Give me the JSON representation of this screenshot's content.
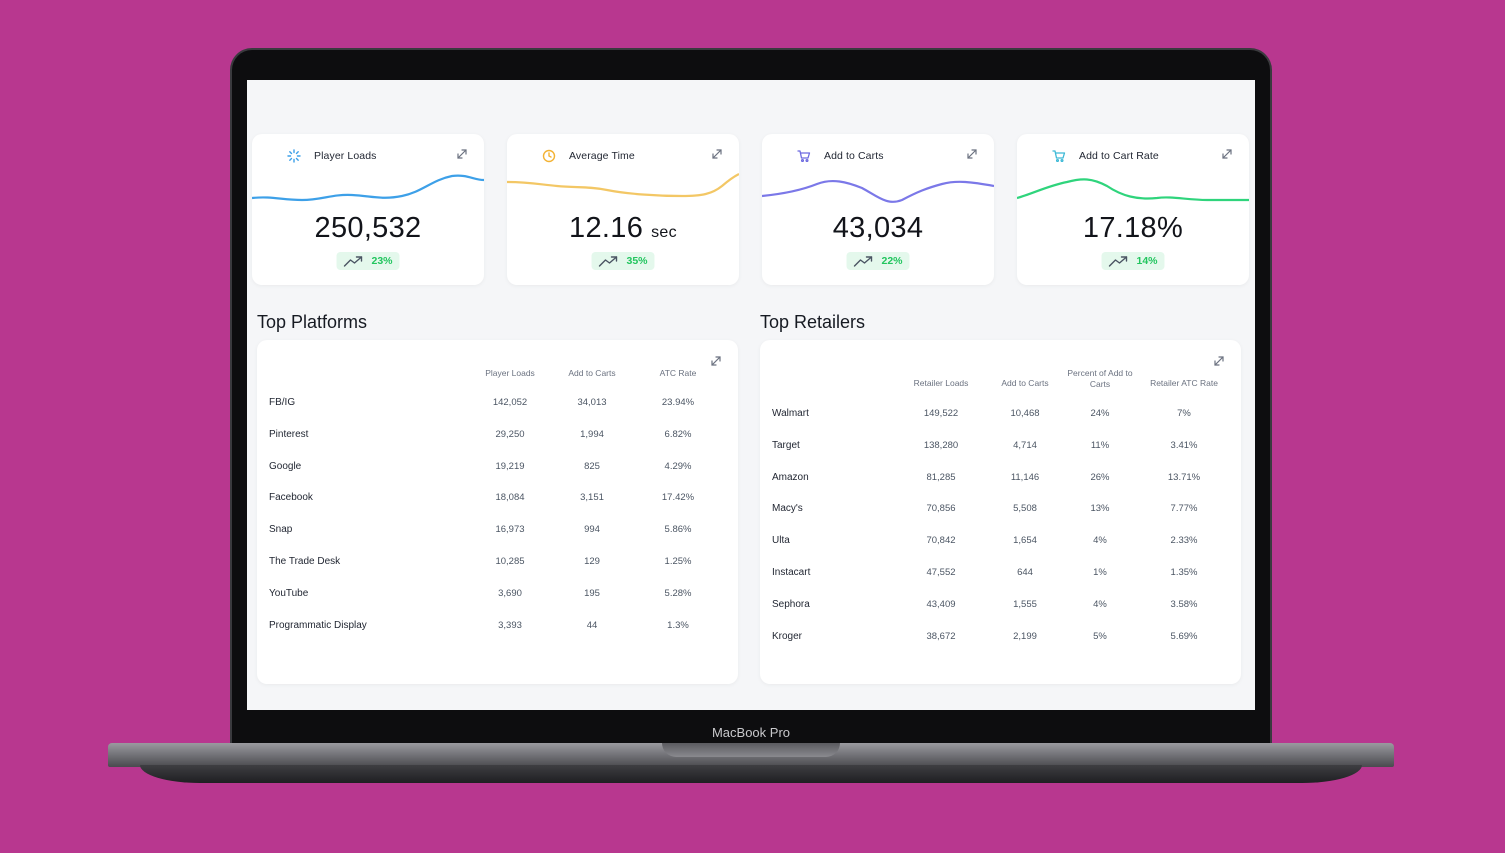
{
  "device": {
    "label": "MacBook Pro"
  },
  "metrics": [
    {
      "title": "Player Loads",
      "value": "250,532",
      "unit": "",
      "trend": "23%",
      "icon": "loader-icon",
      "color": "#3da0e8"
    },
    {
      "title": "Average Time",
      "value": "12.16",
      "unit": "sec",
      "trend": "35%",
      "icon": "clock-icon",
      "color": "#f3c765"
    },
    {
      "title": "Add to Carts",
      "value": "43,034",
      "unit": "",
      "trend": "22%",
      "icon": "cart-icon",
      "color": "#7b78e8"
    },
    {
      "title": "Add to Cart Rate",
      "value": "17.18%",
      "unit": "",
      "trend": "14%",
      "icon": "cart-icon",
      "color": "#2fd47c"
    }
  ],
  "platforms": {
    "title": "Top Platforms",
    "columns": [
      "Player Loads",
      "Add to Carts",
      "ATC Rate"
    ],
    "rows": [
      {
        "name": "FB/IG",
        "loads": "142,052",
        "carts": "34,013",
        "rate": "23.94%"
      },
      {
        "name": "Pinterest",
        "loads": "29,250",
        "carts": "1,994",
        "rate": "6.82%"
      },
      {
        "name": "Google",
        "loads": "19,219",
        "carts": "825",
        "rate": "4.29%"
      },
      {
        "name": "Facebook",
        "loads": "18,084",
        "carts": "3,151",
        "rate": "17.42%"
      },
      {
        "name": "Snap",
        "loads": "16,973",
        "carts": "994",
        "rate": "5.86%"
      },
      {
        "name": "The Trade Desk",
        "loads": "10,285",
        "carts": "129",
        "rate": "1.25%"
      },
      {
        "name": "YouTube",
        "loads": "3,690",
        "carts": "195",
        "rate": "5.28%"
      },
      {
        "name": "Programmatic Display",
        "loads": "3,393",
        "carts": "44",
        "rate": "1.3%"
      }
    ]
  },
  "retailers": {
    "title": "Top Retailers",
    "columns": [
      "Retailer Loads",
      "Add to Carts",
      "Percent of Add to Carts",
      "Retailer ATC Rate"
    ],
    "rows": [
      {
        "name": "Walmart",
        "loads": "149,522",
        "carts": "10,468",
        "pct": "24%",
        "rate": "7%"
      },
      {
        "name": "Target",
        "loads": "138,280",
        "carts": "4,714",
        "pct": "11%",
        "rate": "3.41%"
      },
      {
        "name": "Amazon",
        "loads": "81,285",
        "carts": "11,146",
        "pct": "26%",
        "rate": "13.71%"
      },
      {
        "name": "Macy's",
        "loads": "70,856",
        "carts": "5,508",
        "pct": "13%",
        "rate": "7.77%"
      },
      {
        "name": "Ulta",
        "loads": "70,842",
        "carts": "1,654",
        "pct": "4%",
        "rate": "2.33%"
      },
      {
        "name": "Instacart",
        "loads": "47,552",
        "carts": "644",
        "pct": "1%",
        "rate": "1.35%"
      },
      {
        "name": "Sephora",
        "loads": "43,409",
        "carts": "1,555",
        "pct": "4%",
        "rate": "3.58%"
      },
      {
        "name": "Kroger",
        "loads": "38,672",
        "carts": "2,199",
        "pct": "5%",
        "rate": "5.69%"
      }
    ]
  },
  "colors": {
    "background": "#b8378f",
    "trend_green": "#22c55e",
    "trend_bg": "#e4f8ec"
  }
}
